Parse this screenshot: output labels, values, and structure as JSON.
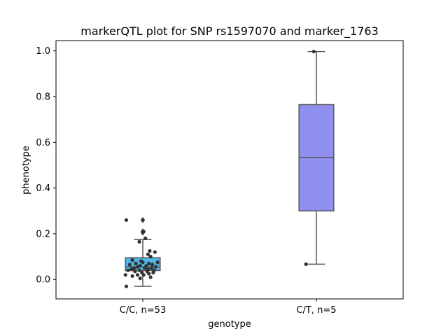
{
  "chart_data": {
    "type": "box",
    "title": "markerQTL plot for SNP rs1597070 and marker_1763",
    "xlabel": "genotype",
    "ylabel": "phenotype",
    "ylim": [
      -0.085,
      1.045
    ],
    "yticks": [
      "0.0",
      "0.2",
      "0.4",
      "0.6",
      "0.8",
      "1.0"
    ],
    "grid": false,
    "categories": [
      "C/C, n=53",
      "C/T, n=5"
    ],
    "boxes": [
      {
        "category": "C/C, n=53",
        "color": "#4FB6E8",
        "q1": 0.039,
        "median": 0.055,
        "q3": 0.095,
        "whisker_low": -0.03,
        "whisker_high": 0.175,
        "outliers": [
          0.26,
          0.21,
          0.205
        ],
        "points": [
          [
            -0.19,
            0.26
          ],
          [
            0.0,
            0.26
          ],
          [
            0.01,
            0.21
          ],
          [
            0.0,
            0.205
          ],
          [
            -0.04,
            0.165
          ],
          [
            0.03,
            0.18
          ],
          [
            0.08,
            0.125
          ],
          [
            0.14,
            0.12
          ],
          [
            0.06,
            0.11
          ],
          [
            0.09,
            0.1
          ],
          [
            -0.12,
            0.085
          ],
          [
            -0.02,
            0.08
          ],
          [
            0.0,
            0.075
          ],
          [
            0.07,
            0.07
          ],
          [
            0.17,
            0.075
          ],
          [
            -0.08,
            0.07
          ],
          [
            -0.15,
            0.065
          ],
          [
            0.11,
            0.065
          ],
          [
            -0.03,
            0.06
          ],
          [
            0.04,
            0.06
          ],
          [
            -0.06,
            0.055
          ],
          [
            0.15,
            0.055
          ],
          [
            -0.1,
            0.05
          ],
          [
            0.02,
            0.05
          ],
          [
            0.1,
            0.05
          ],
          [
            -0.13,
            0.045
          ],
          [
            0.06,
            0.045
          ],
          [
            -0.04,
            0.04
          ],
          [
            0.13,
            0.04
          ],
          [
            -0.17,
            0.04
          ],
          [
            -0.09,
            0.035
          ],
          [
            0.05,
            0.035
          ],
          [
            -0.01,
            0.03
          ],
          [
            0.12,
            0.03
          ],
          [
            0.07,
            0.025
          ],
          [
            -0.2,
            0.02
          ],
          [
            -0.06,
            0.02
          ],
          [
            0.01,
            0.02
          ],
          [
            -0.12,
            0.015
          ],
          [
            0.09,
            0.01
          ],
          [
            -0.03,
            0.005
          ],
          [
            -0.19,
            -0.03
          ]
        ]
      },
      {
        "category": "C/T, n=5",
        "color": "#9090F0",
        "q1": 0.3,
        "median": 0.533,
        "q3": 0.765,
        "whisker_low": 0.067,
        "whisker_high": 0.997,
        "outliers": [],
        "points": [
          [
            -0.03,
            0.997
          ],
          [
            -0.12,
            0.067
          ]
        ]
      }
    ]
  }
}
